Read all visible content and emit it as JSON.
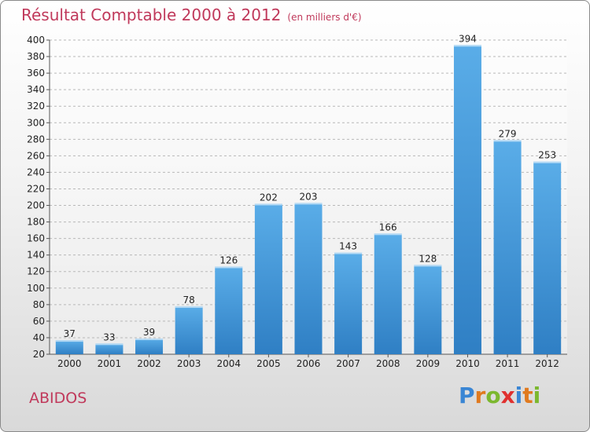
{
  "title": "Résultat Comptable 2000 à 2012",
  "subtitle": "(en milliers d'€)",
  "location": "ABIDOS",
  "brand": {
    "letters": [
      "P",
      "r",
      "o",
      "x",
      "i",
      "t",
      "i"
    ],
    "colors": [
      "#3a86d4",
      "#e07a1f",
      "#7cb82f",
      "#e0312f",
      "#3a86d4",
      "#e07a1f",
      "#7cb82f"
    ]
  },
  "colors": {
    "bar_light": "#5aade8",
    "bar_dark": "#2f7fc4",
    "title": "#c0395b"
  },
  "chart_data": {
    "type": "bar",
    "categories": [
      "2000",
      "2001",
      "2002",
      "2003",
      "2004",
      "2005",
      "2006",
      "2007",
      "2008",
      "2009",
      "2010",
      "2011",
      "2012"
    ],
    "values": [
      37,
      33,
      39,
      78,
      126,
      202,
      203,
      143,
      166,
      128,
      394,
      279,
      253
    ],
    "ylim": [
      20,
      400
    ],
    "yticks": [
      20,
      40,
      60,
      80,
      100,
      120,
      140,
      160,
      180,
      200,
      220,
      240,
      260,
      280,
      300,
      320,
      340,
      360,
      380,
      400
    ],
    "grid": true,
    "legend": "none"
  }
}
